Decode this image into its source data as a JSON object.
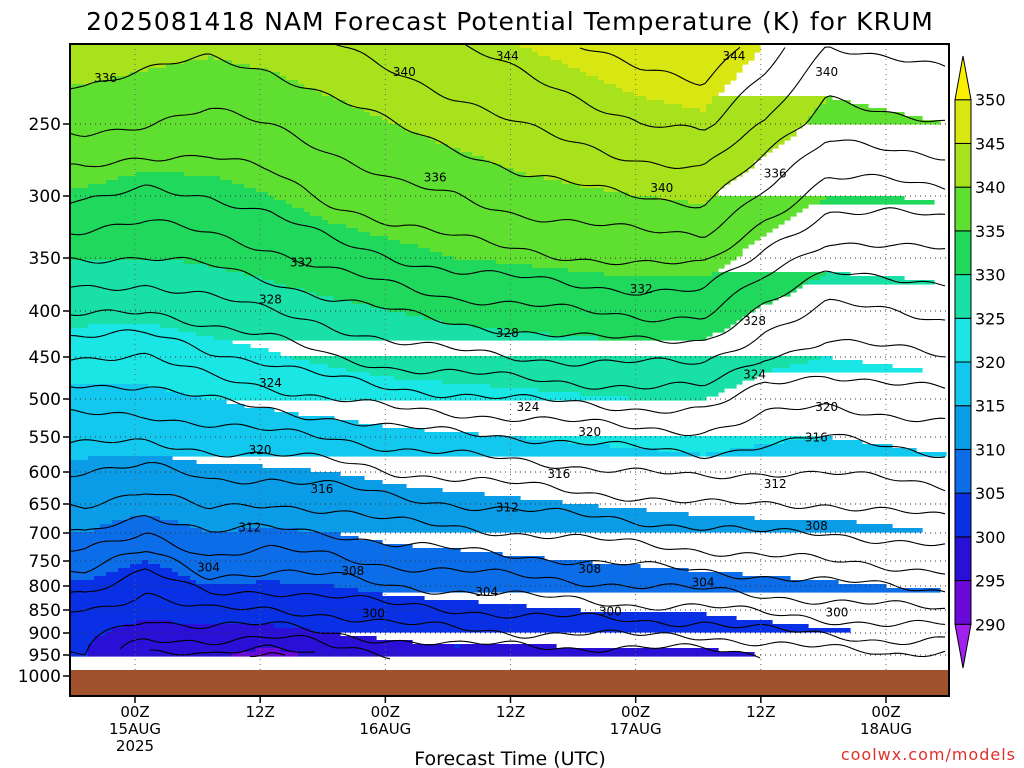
{
  "chart_data": {
    "type": "contour",
    "title": "2025081418 NAM Forecast Potential Temperature (K) for KRUM",
    "xlabel": "Forecast Time (UTC)",
    "ylabel": "",
    "credit": "coolwx.com/models",
    "y_ticks": [
      "250",
      "300",
      "350",
      "400",
      "450",
      "500",
      "550",
      "600",
      "650",
      "700",
      "750",
      "800",
      "850",
      "900",
      "950",
      "1000"
    ],
    "y_pressures": [
      250,
      300,
      350,
      400,
      450,
      500,
      550,
      600,
      650,
      700,
      750,
      800,
      850,
      900,
      950,
      1000
    ],
    "x_ticks": [
      {
        "hour": "00Z",
        "date": "15AUG",
        "year": "2025",
        "hours_from_start": 6
      },
      {
        "hour": "12Z",
        "date": "",
        "year": "",
        "hours_from_start": 18
      },
      {
        "hour": "00Z",
        "date": "16AUG",
        "year": "",
        "hours_from_start": 30
      },
      {
        "hour": "12Z",
        "date": "",
        "year": "",
        "hours_from_start": 42
      },
      {
        "hour": "00Z",
        "date": "17AUG",
        "year": "",
        "hours_from_start": 54
      },
      {
        "hour": "12Z",
        "date": "",
        "year": "",
        "hours_from_start": 66
      },
      {
        "hour": "00Z",
        "date": "18AUG",
        "year": "",
        "hours_from_start": 78
      }
    ],
    "colorbar_ticks": [
      "290",
      "295",
      "300",
      "305",
      "310",
      "315",
      "320",
      "325",
      "330",
      "335",
      "340",
      "345",
      "350"
    ],
    "colorbar_levels": [
      285,
      290,
      295,
      300,
      305,
      310,
      315,
      320,
      325,
      330,
      335,
      340,
      345,
      350,
      355
    ],
    "colorbar_colors": [
      "#a020f0",
      "#6a0ad8",
      "#2a0fd6",
      "#0a30e6",
      "#0b6ee8",
      "#0b9ce8",
      "#12c8ee",
      "#1ae6e6",
      "#19e0a6",
      "#1fd85c",
      "#5fe030",
      "#a8e21c",
      "#d8e612",
      "#f8f000"
    ],
    "surface_color": "#a0522d",
    "contour_interval": 4,
    "profiles": [
      {
        "hours_from_start": 0,
        "theta": [
          338.5,
          334.5,
          330,
          326.5,
          322,
          319,
          316.5,
          314,
          312,
          310,
          307,
          304.5,
          302,
          300.5,
          300
        ]
      },
      {
        "hours_from_start": 6,
        "theta": [
          338,
          333.5,
          330,
          326,
          322,
          319,
          316.5,
          313.5,
          311,
          308,
          305,
          302.5,
          300.5,
          299,
          296
        ]
      },
      {
        "hours_from_start": 12,
        "theta": [
          337.5,
          334,
          330.5,
          327,
          323.5,
          320,
          317,
          314.5,
          312.5,
          310,
          307.5,
          305,
          302,
          299,
          296
        ]
      },
      {
        "hours_from_start": 18,
        "theta": [
          338,
          335,
          331.5,
          328,
          324.5,
          321,
          317.5,
          314.5,
          312,
          309.5,
          307,
          304.5,
          302,
          299,
          293
        ]
      },
      {
        "hours_from_start": 24,
        "theta": [
          339,
          336.5,
          333,
          329,
          326,
          322,
          318,
          315,
          312.5,
          310,
          307.5,
          305,
          302.5,
          300,
          297
        ]
      },
      {
        "hours_from_start": 30,
        "theta": [
          340,
          337.5,
          334,
          330,
          327,
          323,
          319,
          316,
          313.5,
          311,
          308.5,
          306,
          303.5,
          301,
          298
        ]
      },
      {
        "hours_from_start": 36,
        "theta": [
          341,
          338,
          335,
          331,
          327.5,
          323.5,
          319.5,
          316.5,
          314,
          311.5,
          309,
          306.5,
          304,
          301.5,
          299
        ]
      },
      {
        "hours_from_start": 42,
        "theta": [
          342,
          339,
          335.5,
          331.5,
          328,
          324,
          320,
          317,
          314.5,
          312,
          309.5,
          307,
          304.5,
          302,
          298
        ]
      },
      {
        "hours_from_start": 48,
        "theta": [
          343,
          339.5,
          336,
          332,
          328.5,
          324.5,
          320.5,
          317.5,
          315,
          312.5,
          310,
          307.5,
          305,
          302,
          299
        ]
      },
      {
        "hours_from_start": 54,
        "theta": [
          344,
          340,
          336.5,
          332.5,
          328.5,
          325,
          321,
          318,
          315.5,
          313,
          310.5,
          308,
          305.5,
          302.5,
          299
        ]
      },
      {
        "hours_from_start": 60,
        "theta": [
          344.5,
          340.5,
          336.5,
          332.5,
          328.5,
          325,
          321.5,
          318.5,
          316,
          313.5,
          311,
          308.5,
          305.5,
          302.5,
          299
        ]
      },
      {
        "hours_from_start": 66,
        "theta": [
          342,
          337.5,
          333.5,
          329.5,
          326,
          323,
          320.5,
          318,
          316,
          314,
          311.5,
          309,
          306.5,
          303.5,
          300
        ]
      },
      {
        "hours_from_start": 72,
        "theta": [
          339,
          335,
          331,
          327.5,
          325,
          322.5,
          320,
          318,
          316,
          314,
          312,
          309.5,
          307,
          304.5,
          301
        ]
      },
      {
        "hours_from_start": 78,
        "theta": [
          339.5,
          335,
          331,
          328,
          325.5,
          323,
          320.5,
          318.5,
          316.5,
          314.5,
          312.5,
          310,
          307.5,
          305,
          302
        ]
      },
      {
        "hours_from_start": 84,
        "theta": [
          340,
          335.5,
          331.5,
          328.5,
          326,
          323.5,
          321,
          319,
          317,
          315,
          313,
          310.5,
          308,
          305,
          301
        ]
      }
    ],
    "contour_labels": [
      {
        "text": "336",
        "hours_from_start": 2,
        "p": 222
      },
      {
        "text": "340",
        "hours_from_start": 31,
        "p": 218
      },
      {
        "text": "344",
        "hours_from_start": 41,
        "p": 208
      },
      {
        "text": "344",
        "hours_from_start": 63,
        "p": 208
      },
      {
        "text": "340",
        "hours_from_start": 72,
        "p": 218
      },
      {
        "text": "336",
        "hours_from_start": 34,
        "p": 288
      },
      {
        "text": "340",
        "hours_from_start": 56,
        "p": 295
      },
      {
        "text": "336",
        "hours_from_start": 67,
        "p": 285
      },
      {
        "text": "332",
        "hours_from_start": 21,
        "p": 355
      },
      {
        "text": "332",
        "hours_from_start": 54,
        "p": 380
      },
      {
        "text": "328",
        "hours_from_start": 18,
        "p": 390
      },
      {
        "text": "328",
        "hours_from_start": 41,
        "p": 425
      },
      {
        "text": "328",
        "hours_from_start": 65,
        "p": 412
      },
      {
        "text": "324",
        "hours_from_start": 18,
        "p": 482
      },
      {
        "text": "324",
        "hours_from_start": 65,
        "p": 472
      },
      {
        "text": "324",
        "hours_from_start": 43,
        "p": 512
      },
      {
        "text": "320",
        "hours_from_start": 72,
        "p": 512
      },
      {
        "text": "320",
        "hours_from_start": 17,
        "p": 570
      },
      {
        "text": "320",
        "hours_from_start": 49,
        "p": 545
      },
      {
        "text": "316",
        "hours_from_start": 71,
        "p": 552
      },
      {
        "text": "316",
        "hours_from_start": 23,
        "p": 628
      },
      {
        "text": "316",
        "hours_from_start": 46,
        "p": 605
      },
      {
        "text": "312",
        "hours_from_start": 16,
        "p": 692
      },
      {
        "text": "312",
        "hours_from_start": 41,
        "p": 658
      },
      {
        "text": "312",
        "hours_from_start": 67,
        "p": 620
      },
      {
        "text": "308",
        "hours_from_start": 71,
        "p": 690
      },
      {
        "text": "304",
        "hours_from_start": 12,
        "p": 765
      },
      {
        "text": "308",
        "hours_from_start": 26,
        "p": 772
      },
      {
        "text": "308",
        "hours_from_start": 49,
        "p": 768
      },
      {
        "text": "304",
        "hours_from_start": 39,
        "p": 815
      },
      {
        "text": "304",
        "hours_from_start": 60,
        "p": 795
      },
      {
        "text": "300",
        "hours_from_start": 28,
        "p": 860
      },
      {
        "text": "300",
        "hours_from_start": 51,
        "p": 855
      },
      {
        "text": "300",
        "hours_from_start": 73,
        "p": 858
      }
    ]
  }
}
